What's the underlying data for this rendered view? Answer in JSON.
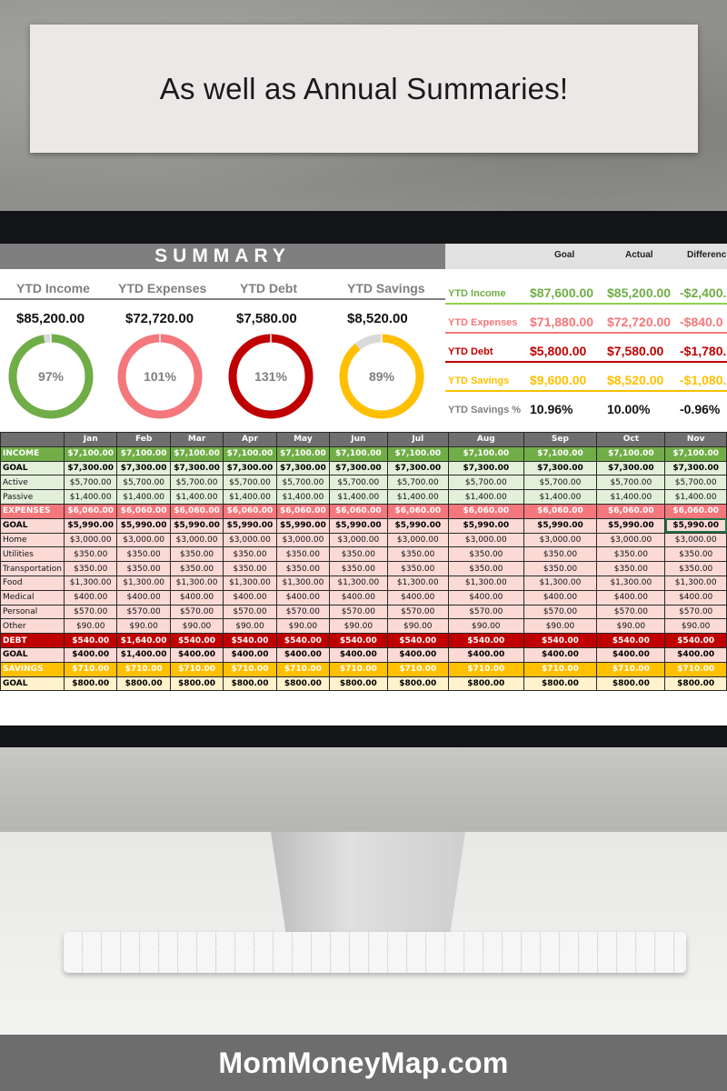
{
  "banner": {
    "text": "As well as Annual Summaries!"
  },
  "footer": {
    "text": "MomMoneyMap.com"
  },
  "summary": {
    "title": "SUMMARY",
    "kpis": [
      {
        "label": "YTD Income",
        "value": "$85,200.00",
        "percent": "97%",
        "pct_num": 97,
        "color": "#70ad47"
      },
      {
        "label": "YTD Expenses",
        "value": "$72,720.00",
        "percent": "101%",
        "pct_num": 101,
        "color": "#f4777b"
      },
      {
        "label": "YTD Debt",
        "value": "$7,580.00",
        "percent": "131%",
        "pct_num": 131,
        "color": "#c00000"
      },
      {
        "label": "YTD Savings",
        "value": "$8,520.00",
        "percent": "89%",
        "pct_num": 89,
        "color": "#ffc000"
      }
    ],
    "comparison": {
      "headers": {
        "goal": "Goal",
        "actual": "Actual",
        "difference": "Differenc"
      },
      "rows": [
        {
          "label": "YTD Income",
          "goal": "$87,600.00",
          "actual": "$85,200.00",
          "difference": "-$2,400.",
          "color": "#70ad47",
          "line": "#8fd14f"
        },
        {
          "label": "YTD Expenses",
          "goal": "$71,880.00",
          "actual": "$72,720.00",
          "difference": "-$840.0",
          "color": "#f4777b",
          "line": "#f4777b"
        },
        {
          "label": "YTD Debt",
          "goal": "$5,800.00",
          "actual": "$7,580.00",
          "difference": "-$1,780.",
          "color": "#c00000",
          "line": "#c00000"
        },
        {
          "label": "YTD Savings",
          "goal": "$9,600.00",
          "actual": "$8,520.00",
          "difference": "-$1,080.",
          "color": "#ffc000",
          "line": "#ffc000"
        },
        {
          "label": "YTD Savings %",
          "goal": "10.96%",
          "actual": "10.00%",
          "difference": "-0.96%",
          "color": "#7f7f7f",
          "line": ""
        }
      ]
    }
  },
  "table": {
    "months": [
      "Jan",
      "Feb",
      "Mar",
      "Apr",
      "May",
      "Jun",
      "Jul",
      "Aug",
      "Sep",
      "Oct",
      "Nov"
    ],
    "rows": [
      {
        "label": "INCOME",
        "cls": "inc",
        "values": [
          "$7,100.00",
          "$7,100.00",
          "$7,100.00",
          "$7,100.00",
          "$7,100.00",
          "$7,100.00",
          "$7,100.00",
          "$7,100.00",
          "$7,100.00",
          "$7,100.00",
          "$7,100.00"
        ]
      },
      {
        "label": "GOAL",
        "cls": "incg",
        "values": [
          "$7,300.00",
          "$7,300.00",
          "$7,300.00",
          "$7,300.00",
          "$7,300.00",
          "$7,300.00",
          "$7,300.00",
          "$7,300.00",
          "$7,300.00",
          "$7,300.00",
          "$7,300.00"
        ]
      },
      {
        "label": "Active",
        "cls": "incd",
        "values": [
          "$5,700.00",
          "$5,700.00",
          "$5,700.00",
          "$5,700.00",
          "$5,700.00",
          "$5,700.00",
          "$5,700.00",
          "$5,700.00",
          "$5,700.00",
          "$5,700.00",
          "$5,700.00"
        ]
      },
      {
        "label": "Passive",
        "cls": "incd",
        "values": [
          "$1,400.00",
          "$1,400.00",
          "$1,400.00",
          "$1,400.00",
          "$1,400.00",
          "$1,400.00",
          "$1,400.00",
          "$1,400.00",
          "$1,400.00",
          "$1,400.00",
          "$1,400.00"
        ]
      },
      {
        "label": "EXPENSES",
        "cls": "exp",
        "values": [
          "$6,060.00",
          "$6,060.00",
          "$6,060.00",
          "$6,060.00",
          "$6,060.00",
          "$6,060.00",
          "$6,060.00",
          "$6,060.00",
          "$6,060.00",
          "$6,060.00",
          "$6,060.00"
        ]
      },
      {
        "label": "GOAL",
        "cls": "expg",
        "values": [
          "$5,990.00",
          "$5,990.00",
          "$5,990.00",
          "$5,990.00",
          "$5,990.00",
          "$5,990.00",
          "$5,990.00",
          "$5,990.00",
          "$5,990.00",
          "$5,990.00",
          "$5,990.00"
        ]
      },
      {
        "label": "Home",
        "cls": "expd",
        "values": [
          "$3,000.00",
          "$3,000.00",
          "$3,000.00",
          "$3,000.00",
          "$3,000.00",
          "$3,000.00",
          "$3,000.00",
          "$3,000.00",
          "$3,000.00",
          "$3,000.00",
          "$3,000.00"
        ]
      },
      {
        "label": "Utilities",
        "cls": "expd",
        "values": [
          "$350.00",
          "$350.00",
          "$350.00",
          "$350.00",
          "$350.00",
          "$350.00",
          "$350.00",
          "$350.00",
          "$350.00",
          "$350.00",
          "$350.00"
        ]
      },
      {
        "label": "Transportation",
        "cls": "expd",
        "values": [
          "$350.00",
          "$350.00",
          "$350.00",
          "$350.00",
          "$350.00",
          "$350.00",
          "$350.00",
          "$350.00",
          "$350.00",
          "$350.00",
          "$350.00"
        ]
      },
      {
        "label": "Food",
        "cls": "expd",
        "values": [
          "$1,300.00",
          "$1,300.00",
          "$1,300.00",
          "$1,300.00",
          "$1,300.00",
          "$1,300.00",
          "$1,300.00",
          "$1,300.00",
          "$1,300.00",
          "$1,300.00",
          "$1,300.00"
        ]
      },
      {
        "label": "Medical",
        "cls": "expd",
        "values": [
          "$400.00",
          "$400.00",
          "$400.00",
          "$400.00",
          "$400.00",
          "$400.00",
          "$400.00",
          "$400.00",
          "$400.00",
          "$400.00",
          "$400.00"
        ]
      },
      {
        "label": "Personal",
        "cls": "expd",
        "values": [
          "$570.00",
          "$570.00",
          "$570.00",
          "$570.00",
          "$570.00",
          "$570.00",
          "$570.00",
          "$570.00",
          "$570.00",
          "$570.00",
          "$570.00"
        ]
      },
      {
        "label": "Other",
        "cls": "expd",
        "values": [
          "$90.00",
          "$90.00",
          "$90.00",
          "$90.00",
          "$90.00",
          "$90.00",
          "$90.00",
          "$90.00",
          "$90.00",
          "$90.00",
          "$90.00"
        ]
      },
      {
        "label": "DEBT",
        "cls": "debt",
        "values": [
          "$540.00",
          "$1,640.00",
          "$540.00",
          "$540.00",
          "$540.00",
          "$540.00",
          "$540.00",
          "$540.00",
          "$540.00",
          "$540.00",
          "$540.00"
        ]
      },
      {
        "label": "GOAL",
        "cls": "debtg",
        "values": [
          "$400.00",
          "$1,400.00",
          "$400.00",
          "$400.00",
          "$400.00",
          "$400.00",
          "$400.00",
          "$400.00",
          "$400.00",
          "$400.00",
          "$400.00"
        ]
      },
      {
        "label": "SAVINGS",
        "cls": "sav",
        "values": [
          "$710.00",
          "$710.00",
          "$710.00",
          "$710.00",
          "$710.00",
          "$710.00",
          "$710.00",
          "$710.00",
          "$710.00",
          "$710.00",
          "$710.00"
        ]
      },
      {
        "label": "GOAL",
        "cls": "savg",
        "values": [
          "$800.00",
          "$800.00",
          "$800.00",
          "$800.00",
          "$800.00",
          "$800.00",
          "$800.00",
          "$800.00",
          "$800.00",
          "$800.00",
          "$800.00"
        ]
      }
    ]
  }
}
